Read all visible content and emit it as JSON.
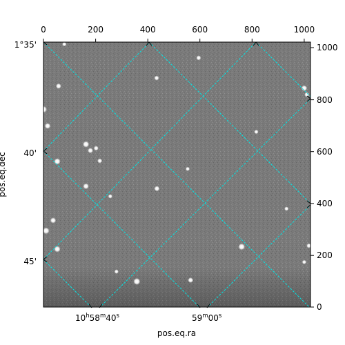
{
  "chart_data": {
    "type": "scatter",
    "title": "",
    "image_axes": {
      "top_ticks": [
        "0",
        "200",
        "400",
        "600",
        "800",
        "1000"
      ],
      "top_tick_values": [
        0,
        200,
        400,
        600,
        800,
        1000
      ],
      "right_ticks": [
        "1000",
        "800",
        "600",
        "400",
        "200",
        "0"
      ],
      "right_tick_values": [
        1000,
        800,
        600,
        400,
        200,
        0
      ],
      "xlim": [
        0,
        1024
      ],
      "ylim": [
        0,
        1024
      ]
    },
    "world_axes": {
      "xlabel": "pos.eq.ra",
      "ylabel": "pos.eq.dec",
      "ra_ticks": [
        {
          "label": "10h58m40s",
          "h": "10",
          "m": "58",
          "s": "40"
        },
        {
          "label": "59m00s",
          "m": "59",
          "s": "00"
        }
      ],
      "dec_ticks": [
        "1°35'",
        "40'",
        "45'"
      ]
    },
    "grid": true,
    "grid_color": "#00e5e5",
    "image_background": "#7a7a7a",
    "stars": [
      {
        "x": 0,
        "y": 764,
        "brightness": 1.0
      },
      {
        "x": 16,
        "y": 700,
        "brightness": 0.8
      },
      {
        "x": 58,
        "y": 854,
        "brightness": 0.7
      },
      {
        "x": 163,
        "y": 629,
        "brightness": 0.9
      },
      {
        "x": 180,
        "y": 605,
        "brightness": 0.7
      },
      {
        "x": 202,
        "y": 614,
        "brightness": 0.6
      },
      {
        "x": 53,
        "y": 563,
        "brightness": 0.9
      },
      {
        "x": 163,
        "y": 467,
        "brightness": 0.8
      },
      {
        "x": 216,
        "y": 565,
        "brightness": 0.6
      },
      {
        "x": 434,
        "y": 885,
        "brightness": 0.6
      },
      {
        "x": 595,
        "y": 963,
        "brightness": 0.6
      },
      {
        "x": 10,
        "y": 295,
        "brightness": 0.95
      },
      {
        "x": 37,
        "y": 335,
        "brightness": 0.8
      },
      {
        "x": 53,
        "y": 224,
        "brightness": 0.9
      },
      {
        "x": 435,
        "y": 458,
        "brightness": 0.7
      },
      {
        "x": 760,
        "y": 233,
        "brightness": 0.95
      },
      {
        "x": 358,
        "y": 99,
        "brightness": 1.0
      },
      {
        "x": 564,
        "y": 104,
        "brightness": 0.7
      },
      {
        "x": 1000,
        "y": 846,
        "brightness": 0.8
      },
      {
        "x": 1010,
        "y": 821,
        "brightness": 0.6
      },
      {
        "x": 1018,
        "y": 237,
        "brightness": 0.6
      },
      {
        "x": 1000,
        "y": 174,
        "brightness": 0.5
      },
      {
        "x": 932,
        "y": 380,
        "brightness": 0.5
      },
      {
        "x": 80,
        "y": 1016,
        "brightness": 0.5
      },
      {
        "x": 256,
        "y": 428,
        "brightness": 0.5
      },
      {
        "x": 280,
        "y": 137,
        "brightness": 0.5
      },
      {
        "x": 816,
        "y": 677,
        "brightness": 0.5
      },
      {
        "x": 553,
        "y": 534,
        "brightness": 0.5
      }
    ]
  }
}
